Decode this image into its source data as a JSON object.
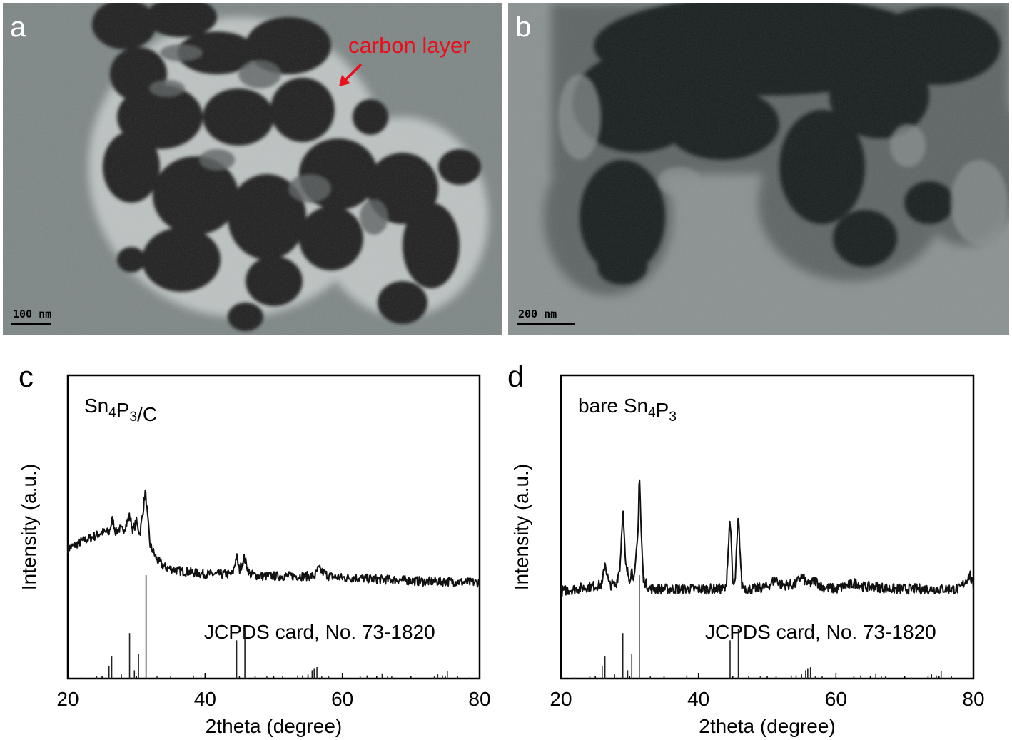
{
  "panels": {
    "a": {
      "letter": "a",
      "scale_bar": "100 nm",
      "annotation": "carbon layer"
    },
    "b": {
      "letter": "b",
      "scale_bar": "200 nm"
    },
    "c": {
      "letter": "c"
    },
    "d": {
      "letter": "d"
    }
  },
  "chart_data": [
    {
      "type": "line",
      "panel": "c",
      "sample_label": {
        "base": "Sn",
        "sub1": "4",
        "mid": "P",
        "sub2": "3",
        "tail": "/C"
      },
      "xlabel": "2theta (degree)",
      "ylabel": "Intensity (a.u.)",
      "xlim": [
        20,
        80
      ],
      "xticks": [
        "20",
        "40",
        "60",
        "80"
      ],
      "reference_label": "JCPDS card, No. 73-1820",
      "series": [
        {
          "kind": "pattern",
          "x": [
            20,
            22,
            24,
            25,
            26,
            26.5,
            27,
            27.5,
            28,
            28.5,
            29,
            29.5,
            30,
            30.5,
            31,
            31.3,
            31.6,
            32,
            33,
            34,
            36,
            38,
            40,
            42,
            44,
            44.6,
            45,
            45.7,
            46.5,
            48,
            50,
            52,
            54,
            56,
            56.5,
            58,
            60,
            62,
            64,
            66,
            68,
            70,
            72,
            74,
            76,
            78,
            80
          ],
          "y": [
            0.2,
            0.24,
            0.27,
            0.29,
            0.29,
            0.36,
            0.29,
            0.31,
            0.3,
            0.33,
            0.38,
            0.3,
            0.35,
            0.28,
            0.42,
            0.52,
            0.38,
            0.22,
            0.14,
            0.1,
            0.08,
            0.07,
            0.06,
            0.06,
            0.06,
            0.16,
            0.08,
            0.15,
            0.06,
            0.05,
            0.05,
            0.05,
            0.05,
            0.05,
            0.09,
            0.05,
            0.04,
            0.04,
            0.035,
            0.03,
            0.03,
            0.025,
            0.02,
            0.02,
            0.02,
            0.015,
            0.015
          ]
        },
        {
          "kind": "reference-sticks",
          "x": [
            21.9,
            24.2,
            26.0,
            26.4,
            27.8,
            29.0,
            29.7,
            30.3,
            31.4,
            33.0,
            38.3,
            44.6,
            45.8,
            47.3,
            49.0,
            51.3,
            53.5,
            54.2,
            55.0,
            55.6,
            55.9,
            56.3,
            57.0,
            58.0,
            62.6,
            63.6,
            65.8,
            66.6,
            67.2,
            71.0,
            73.4,
            73.9,
            74.6,
            75.3,
            76.8,
            78.5,
            79.6
          ],
          "y": [
            1,
            2,
            12,
            22,
            4,
            44,
            8,
            24,
            100,
            2,
            3,
            37,
            48,
            2,
            2,
            2,
            3,
            3,
            4,
            8,
            10,
            11,
            2,
            2,
            2,
            3,
            5,
            2,
            2,
            1,
            2,
            4,
            3,
            7,
            2,
            1,
            1
          ]
        }
      ]
    },
    {
      "type": "line",
      "panel": "d",
      "sample_label": {
        "base": "bare Sn",
        "sub1": "4",
        "mid": "P",
        "sub2": "3",
        "tail": ""
      },
      "xlabel": "2theta (degree)",
      "ylabel": "Intensity (a.u.)",
      "xlim": [
        20,
        80
      ],
      "xticks": [
        "20",
        "40",
        "60",
        "80"
      ],
      "reference_label": "JCPDS card, No. 73-1820",
      "series": [
        {
          "kind": "pattern",
          "x": [
            20,
            22,
            24,
            26,
            26.4,
            27,
            28,
            28.6,
            29.0,
            29.4,
            30,
            30.3,
            30.7,
            31.2,
            31.4,
            31.7,
            32,
            33,
            34,
            36,
            38,
            40,
            42,
            44,
            44.6,
            45,
            45.3,
            45.8,
            46.3,
            47,
            48,
            50,
            51.3,
            52,
            54,
            55,
            56,
            57,
            58,
            60,
            62,
            63,
            64,
            66,
            68,
            70,
            72,
            74,
            76,
            78,
            79.5,
            80
          ],
          "y": [
            0.02,
            0.03,
            0.04,
            0.05,
            0.16,
            0.05,
            0.05,
            0.14,
            0.42,
            0.14,
            0.08,
            0.12,
            0.08,
            0.3,
            0.6,
            0.28,
            0.07,
            0.03,
            0.03,
            0.03,
            0.03,
            0.03,
            0.03,
            0.03,
            0.38,
            0.05,
            0.05,
            0.38,
            0.05,
            0.03,
            0.03,
            0.04,
            0.08,
            0.05,
            0.05,
            0.09,
            0.05,
            0.07,
            0.04,
            0.03,
            0.05,
            0.06,
            0.04,
            0.04,
            0.03,
            0.03,
            0.03,
            0.03,
            0.03,
            0.03,
            0.1,
            0.03
          ]
        },
        {
          "kind": "reference-sticks",
          "x": [
            21.9,
            24.2,
            26.0,
            26.4,
            27.8,
            29.0,
            29.7,
            30.3,
            31.4,
            33.0,
            38.3,
            44.6,
            45.8,
            47.3,
            49.0,
            51.3,
            53.5,
            54.2,
            55.0,
            55.6,
            55.9,
            56.3,
            57.0,
            58.0,
            62.6,
            63.6,
            65.8,
            66.6,
            67.2,
            71.0,
            73.4,
            73.9,
            74.6,
            75.3,
            76.8,
            78.5,
            79.6
          ],
          "y": [
            1,
            2,
            12,
            22,
            4,
            44,
            8,
            24,
            100,
            2,
            3,
            37,
            48,
            2,
            2,
            2,
            3,
            3,
            4,
            8,
            10,
            11,
            2,
            2,
            2,
            3,
            5,
            2,
            2,
            1,
            2,
            4,
            3,
            7,
            2,
            1,
            1
          ]
        }
      ]
    }
  ]
}
